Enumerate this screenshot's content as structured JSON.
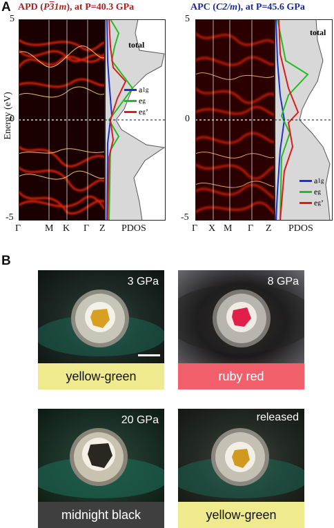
{
  "panelA": {
    "letter": "A",
    "ylabel": "Energy (eV)",
    "left": {
      "title_prefix": "APD (",
      "title_symmetry": "P",
      "title_bar": "3",
      "title_rest": "1m",
      "title_suffix": "), at P=40.3 GPa",
      "y_ticks": [
        "5",
        "0",
        "-5"
      ],
      "k_labels": [
        "Γ",
        "M",
        "K",
        "Γ",
        "Z"
      ],
      "pdos_label": "PDOS",
      "total_label": "total",
      "legend": [
        {
          "label": "a",
          "sub": "1g",
          "color": "#1f2fd0"
        },
        {
          "label": "e",
          "sub": "g",
          "color": "#22bb22"
        },
        {
          "label": "e",
          "sub": "g",
          "sup": "’",
          "color": "#dd1a1a"
        }
      ]
    },
    "right": {
      "title_prefix": "APC (",
      "title_symmetry": "C2/m",
      "title_suffix": "), at P=45.6 GPa",
      "y_ticks": [
        "5",
        "0",
        "-5"
      ],
      "k_labels": [
        "Γ",
        "X",
        "M",
        "Γ",
        "Z"
      ],
      "pdos_label": "PDOS",
      "total_label": "total",
      "legend": [
        {
          "label": "a",
          "sub": "1g",
          "color": "#1f2fd0"
        },
        {
          "label": "e",
          "sub": "g",
          "color": "#22bb22"
        },
        {
          "label": "e",
          "sub": "g",
          "sup": "’",
          "color": "#dd1a1a"
        }
      ]
    }
  },
  "panelB": {
    "letter": "B",
    "photos": [
      {
        "pressure": "3 GPa",
        "caption": "yellow-green",
        "caption_bg": "#f0ea8e",
        "caption_color": "#111111",
        "sample_color": "#d8a020"
      },
      {
        "pressure": "8 GPa",
        "caption": "ruby red",
        "caption_bg": "#f05f6a",
        "caption_color": "#ffffff",
        "sample_color": "#e0204a"
      },
      {
        "pressure": "20 GPa",
        "caption": "midnight black",
        "caption_bg": "#3f3f3f",
        "caption_color": "#ffffff",
        "sample_color": "#2a2620"
      },
      {
        "pressure": "released",
        "caption": "yellow-green",
        "caption_bg": "#f0ea8e",
        "caption_color": "#111111",
        "sample_color": "#d09a20"
      }
    ]
  }
}
